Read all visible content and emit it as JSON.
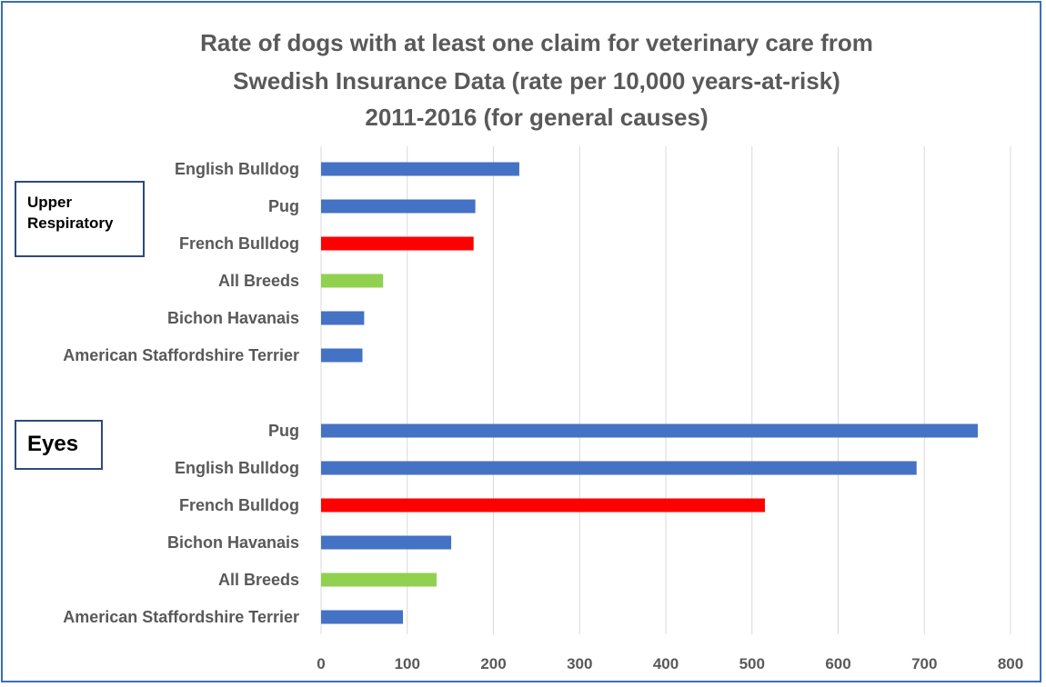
{
  "chart_data": {
    "type": "bar",
    "orientation": "horizontal",
    "title": [
      "Rate of dogs with at least one claim for veterinary care from",
      "Swedish Insurance Data (rate per 10,000 years-at-risk)",
      "2011-2016 (for general causes)"
    ],
    "xlim": [
      0,
      800
    ],
    "xticks": [
      "0",
      "100",
      "200",
      "300",
      "400",
      "500",
      "600",
      "700",
      "800"
    ],
    "grid": true,
    "colors": {
      "default": "#4472c4",
      "highlight": "#ff0000",
      "reference": "#92d050"
    },
    "groups": [
      {
        "name": "Upper Respiratory",
        "bars": [
          {
            "label": "English Bulldog",
            "value": 230,
            "color": "default"
          },
          {
            "label": "Pug",
            "value": 179,
            "color": "default"
          },
          {
            "label": "French Bulldog",
            "value": 177,
            "color": "highlight"
          },
          {
            "label": "All Breeds",
            "value": 72,
            "color": "reference"
          },
          {
            "label": "Bichon Havanais",
            "value": 50,
            "color": "default"
          },
          {
            "label": "American Staffordshire Terrier",
            "value": 48,
            "color": "default"
          }
        ]
      },
      {
        "name": "Eyes",
        "bars": [
          {
            "label": "Pug",
            "value": 762,
            "color": "default"
          },
          {
            "label": "English Bulldog",
            "value": 691,
            "color": "default"
          },
          {
            "label": "French Bulldog",
            "value": 515,
            "color": "highlight"
          },
          {
            "label": "Bichon Havanais",
            "value": 151,
            "color": "default"
          },
          {
            "label": "All Breeds",
            "value": 134,
            "color": "reference"
          },
          {
            "label": "American Staffordshire Terrier",
            "value": 95,
            "color": "default"
          }
        ]
      }
    ]
  }
}
